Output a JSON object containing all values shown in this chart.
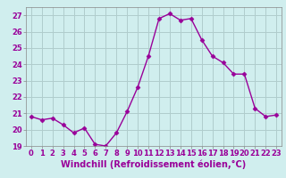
{
  "x": [
    0,
    1,
    2,
    3,
    4,
    5,
    6,
    7,
    8,
    9,
    10,
    11,
    12,
    13,
    14,
    15,
    16,
    17,
    18,
    19,
    20,
    21,
    22,
    23
  ],
  "y": [
    20.8,
    20.6,
    20.7,
    20.3,
    19.8,
    20.1,
    19.1,
    19.0,
    19.8,
    21.1,
    22.6,
    24.5,
    26.8,
    27.1,
    26.7,
    26.8,
    25.5,
    24.5,
    24.1,
    23.4,
    23.4,
    21.3,
    20.8,
    20.9
  ],
  "line_color": "#990099",
  "marker": "D",
  "marker_size": 2.5,
  "xlabel": "Windchill (Refroidissement éolien,°C)",
  "xlabel_fontsize": 7,
  "ylim": [
    19,
    27.5
  ],
  "yticks": [
    19,
    20,
    21,
    22,
    23,
    24,
    25,
    26,
    27
  ],
  "xticks": [
    0,
    1,
    2,
    3,
    4,
    5,
    6,
    7,
    8,
    9,
    10,
    11,
    12,
    13,
    14,
    15,
    16,
    17,
    18,
    19,
    20,
    21,
    22,
    23
  ],
  "grid_color": "#b0cccc",
  "bg_color": "#d0eeee",
  "tick_fontsize": 6,
  "line_width": 1.0
}
